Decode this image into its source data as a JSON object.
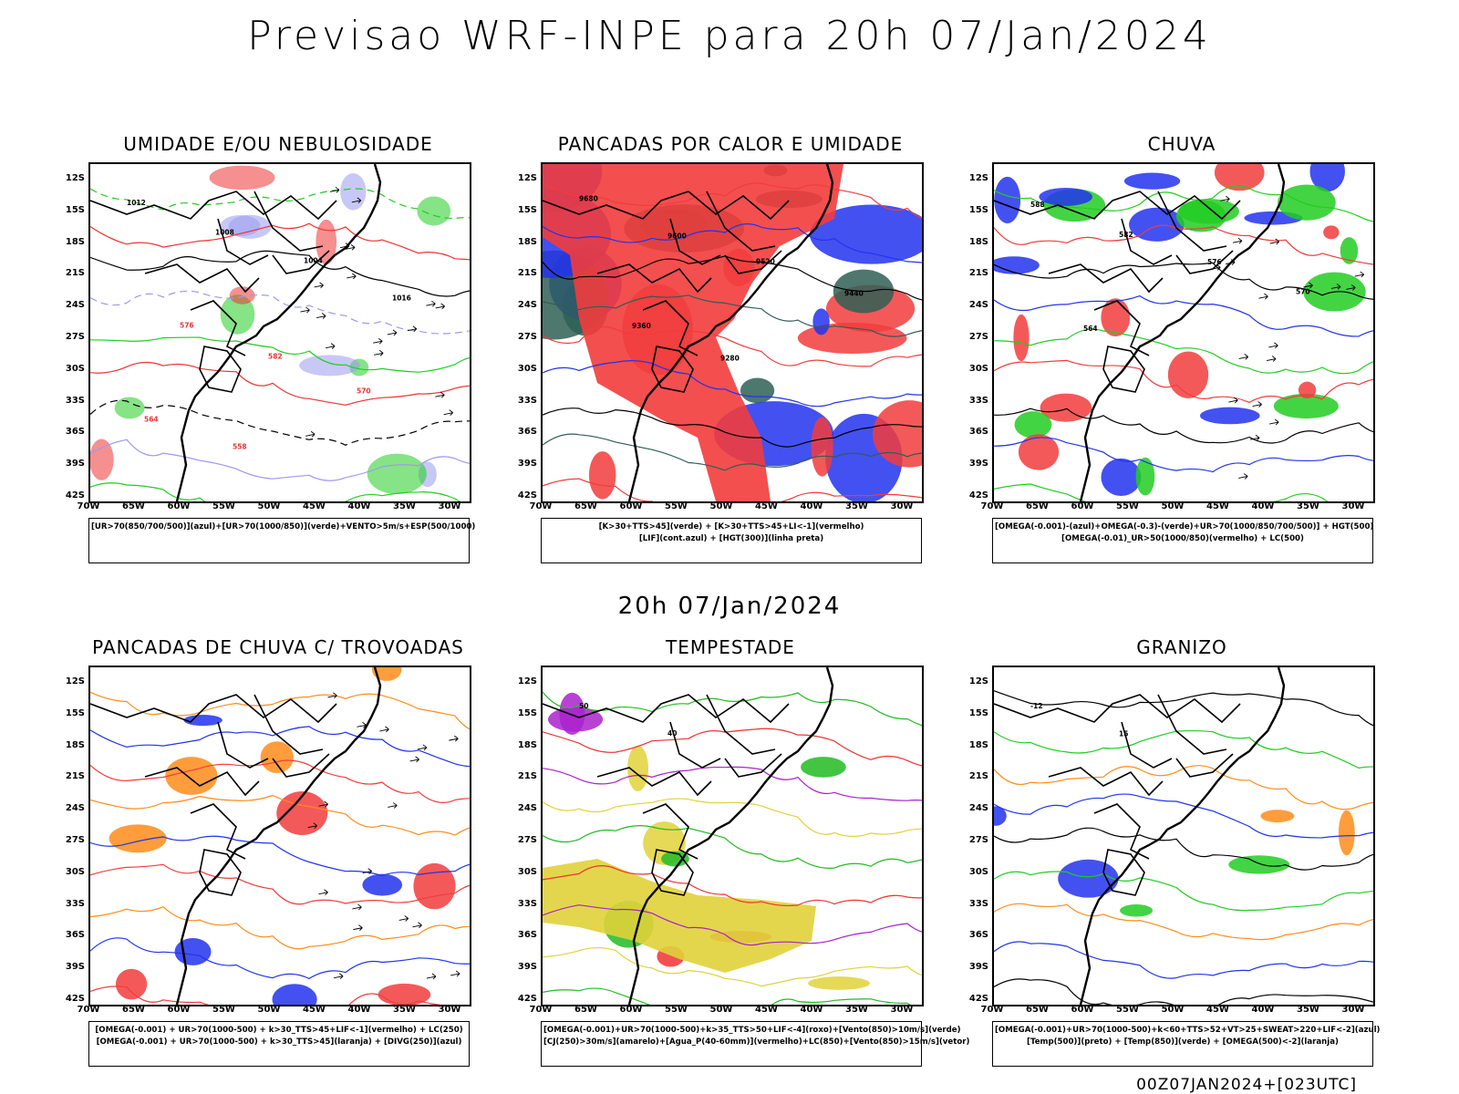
{
  "title": "Previsao WRF-INPE  para 20h 07/Jan/2024",
  "mid_label": "20h 07/Jan/2024",
  "footer": "00Z07JAN2024+[023UTC]",
  "axes": {
    "lat_labels": [
      "12S",
      "15S",
      "18S",
      "21S",
      "24S",
      "27S",
      "30S",
      "33S",
      "36S",
      "39S",
      "42S"
    ],
    "lon_labels": [
      "70W",
      "65W",
      "60W",
      "55W",
      "50W",
      "45W",
      "40W",
      "35W",
      "30W"
    ]
  },
  "panels": [
    {
      "title": "UMIDADE E/OU NEBULOSIDADE",
      "legend": [
        "[UR>70(850/700/500)](azul)+[UR>70(1000/850)](verde)+VENTO>5m/s+ESP(500/1000)"
      ],
      "colors": {
        "humidity_high": "#9b9bf0",
        "humidity_low": "#22cc22",
        "thickness": "#ee3333",
        "pressure": "#000000"
      },
      "contour_labels": [
        "1012",
        "1008",
        "1004",
        "1016",
        "576",
        "582",
        "570",
        "564",
        "558"
      ]
    },
    {
      "title": "PANCADAS POR CALOR E UMIDADE",
      "legend": [
        "[K>30+TTS>45](verde) + [K>30+TTS>45+LI<-1](vermelho)",
        "[LIF](cont.azul) + [HGT(300)](linha preta)"
      ],
      "colors": {
        "k_tts": "#2f5f55",
        "k_tts_li": "#f23c3c",
        "lif": "#2233ee",
        "hgt": "#000000"
      },
      "contour_labels": [
        "9680",
        "9600",
        "9520",
        "9440",
        "9360",
        "9280"
      ]
    },
    {
      "title": "CHUVA",
      "legend": [
        "[OMEGA(-0.001)-(azul)+OMEGA(-0.3)-(verde)+UR>70(1000/850/700/500)] + HGT(500)",
        "[OMEGA(-0.01)_UR>50(1000/850)(vermelho) + LC(500)"
      ],
      "colors": {
        "omega_weak": "#2233ee",
        "omega_strong": "#22cc22",
        "omega_ur": "#f23c3c",
        "hgt": "#000000"
      },
      "contour_labels": [
        "588",
        "582",
        "576",
        "570",
        "564"
      ]
    },
    {
      "title": "PANCADAS DE CHUVA C/ TROVOADAS",
      "legend": [
        "[OMEGA(-0.001) + UR>70(1000-500) + k>30_TTS>45+LIF<-1](vermelho) + LC(250)",
        "[OMEGA(-0.001) + UR>70(1000-500) + k>30_TTS>45](laranja) + [DIVG(250)](azul)"
      ],
      "colors": {
        "convective": "#f23c3c",
        "moderate": "#ff8c1a",
        "divergence": "#2233ee"
      },
      "contour_labels": []
    },
    {
      "title": "TEMPESTADE",
      "legend": [
        "[OMEGA(-0.001)+UR>70(1000-500)+k>35_TTS>50+LIF<-4](roxo)+[Vento(850)>10m/s](verde)",
        "[CJ(250)>30m/s](amarelo)+[Agua_P(40-60mm)](vermelho)+LC(850)+[Vento(850)>15m/s](vetor)"
      ],
      "colors": {
        "jet": "#e0d23a",
        "wind": "#22bb22",
        "precip_water": "#ee3333",
        "severe": "#aa22cc"
      },
      "contour_labels": [
        "50",
        "40"
      ]
    },
    {
      "title": "GRANIZO",
      "legend": [
        "[OMEGA(-0.001)+UR>70(1000-500)+k<60+TTS>52+VT>25+SWEAT>220+LIF<-2](azul)",
        "[Temp(500)](preto) + [Temp(850)](verde) + [OMEGA(500)<-2](laranja)"
      ],
      "colors": {
        "hail": "#2233ee",
        "temp500": "#000000",
        "temp850": "#22cc22",
        "omega500": "#ff8c1a"
      },
      "contour_labels": [
        "-12",
        "15"
      ]
    }
  ]
}
